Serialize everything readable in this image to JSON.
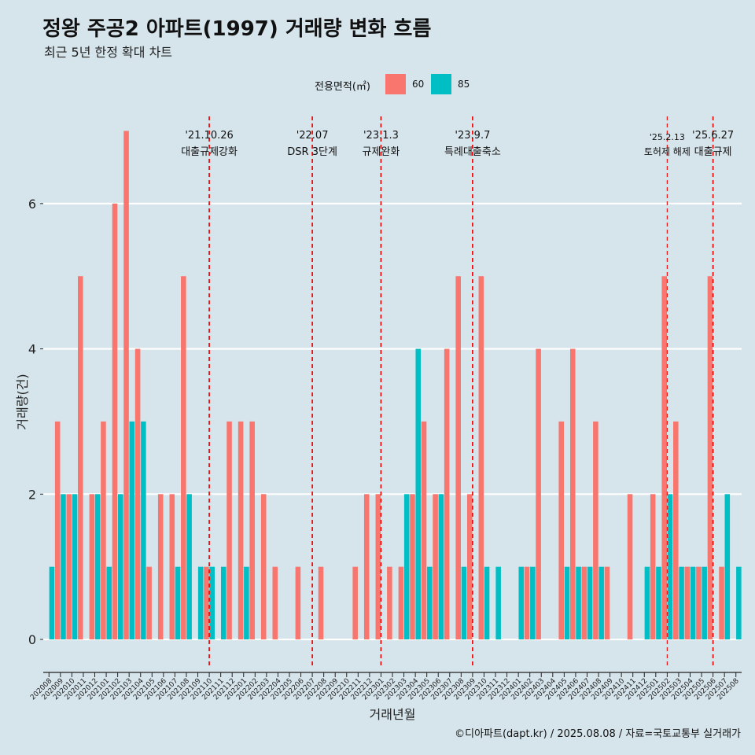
{
  "title": "정왕 주공2 아파트(1997) 거래량 변화 흐름",
  "subtitle": "최근 5년 한정 확대 차트",
  "legend": {
    "title": "전용면적(㎡)",
    "items": [
      {
        "label": "60",
        "color": "#f8766d"
      },
      {
        "label": "85",
        "color": "#00bfc4"
      }
    ]
  },
  "caption": "©디아파트(dapt.kr) / 2025.08.08 / 자료=국토교통부 실거래가",
  "chart_data": {
    "type": "bar",
    "xlabel": "거래년월",
    "ylabel": "거래량(건)",
    "ylim": [
      -0.4,
      7.2
    ],
    "yticks": [
      0,
      2,
      4,
      6
    ],
    "grid": true,
    "legend_position": "top",
    "categories": [
      "202008",
      "202009",
      "202010",
      "202011",
      "202012",
      "202101",
      "202102",
      "202103",
      "202104",
      "202105",
      "202106",
      "202107",
      "202108",
      "202109",
      "202110",
      "202111",
      "202112",
      "202201",
      "202202",
      "202203",
      "202204",
      "202205",
      "202206",
      "202207",
      "202208",
      "202209",
      "202210",
      "202211",
      "202212",
      "202301",
      "202302",
      "202303",
      "202304",
      "202305",
      "202306",
      "202307",
      "202308",
      "202309",
      "202310",
      "202311",
      "202312",
      "202401",
      "202402",
      "202403",
      "202404",
      "202405",
      "202406",
      "202407",
      "202408",
      "202409",
      "202410",
      "202411",
      "202412",
      "202501",
      "202502",
      "202503",
      "202504",
      "202505",
      "202506",
      "202507",
      "202508"
    ],
    "series": [
      {
        "name": "60",
        "color": "#f8766d",
        "values": [
          0,
          3,
          2,
          5,
          2,
          3,
          6,
          7,
          4,
          1,
          2,
          2,
          5,
          0,
          1,
          0,
          3,
          3,
          3,
          2,
          1,
          0,
          1,
          0,
          1,
          0,
          0,
          1,
          2,
          2,
          1,
          1,
          2,
          3,
          2,
          4,
          5,
          2,
          5,
          0,
          0,
          0,
          1,
          4,
          0,
          3,
          4,
          1,
          3,
          1,
          0,
          2,
          0,
          2,
          5,
          3,
          1,
          1,
          5,
          1,
          0
        ]
      },
      {
        "name": "85",
        "color": "#00bfc4",
        "values": [
          1,
          2,
          2,
          0,
          2,
          1,
          2,
          3,
          3,
          0,
          0,
          1,
          2,
          1,
          1,
          1,
          0,
          1,
          0,
          0,
          0,
          0,
          0,
          0,
          0,
          0,
          0,
          0,
          0,
          0,
          0,
          2,
          4,
          1,
          2,
          0,
          1,
          0,
          1,
          1,
          0,
          1,
          1,
          0,
          0,
          1,
          1,
          1,
          1,
          0,
          0,
          0,
          1,
          1,
          2,
          1,
          1,
          1,
          0,
          2,
          1
        ]
      }
    ],
    "annotations": [
      {
        "x": "202110",
        "date": "'21.10.26",
        "label": "대출규제강화",
        "style": "thick"
      },
      {
        "x": "202207",
        "date": "'22.07",
        "label": "DSR 3단계",
        "style": "thick"
      },
      {
        "x": "202301",
        "date": "'23.1.3",
        "label": "규제완화",
        "style": "thick"
      },
      {
        "x": "202309",
        "date": "'23.9.7",
        "label": "특례대출축소",
        "style": "thick"
      },
      {
        "x": "202502",
        "date": "'25.2.13",
        "label": "토허제 해제",
        "style": "thin"
      },
      {
        "x": "202506",
        "date": "'25.6.27",
        "label": "대출규제",
        "style": "thick"
      }
    ]
  }
}
